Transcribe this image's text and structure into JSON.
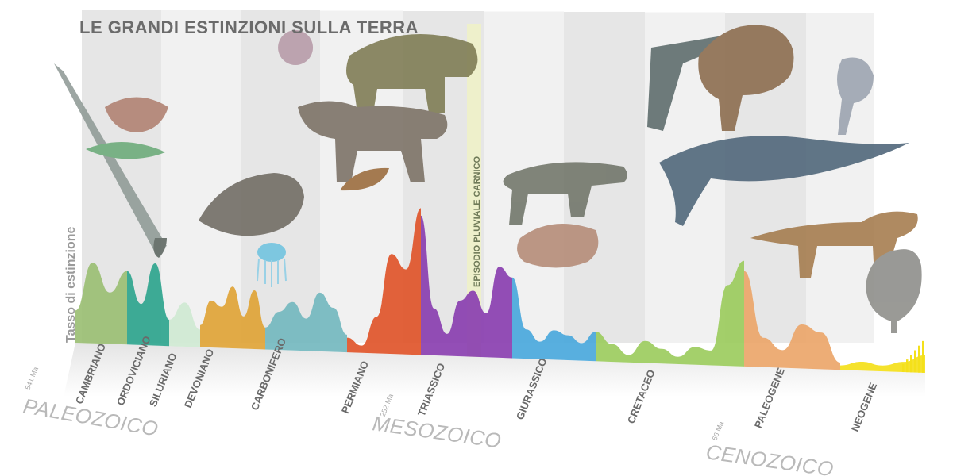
{
  "title": "LE GRANDI ESTINZIONI SULLA TERRA",
  "episode_label": "EPISODIO  PLUVIALE  CARNICO",
  "chart_data": {
    "type": "area",
    "title": "LE GRANDI ESTINZIONI SULLA TERRA",
    "xlabel": "",
    "ylabel": "Tasso di estinzione",
    "x_direction": "time flowing left to right, from 541 Ma to present",
    "eras": [
      {
        "name": "PALEOZOICO",
        "start_label": "541 Ma"
      },
      {
        "name": "MESOZOICO",
        "start_label": "252 Ma"
      },
      {
        "name": "CENOZOICO",
        "start_label": "66 Ma"
      }
    ],
    "periods": [
      {
        "name": "CAMBRIANO",
        "color": "#9bbf74",
        "profile": [
          0.22,
          0.55,
          0.35,
          0.5
        ]
      },
      {
        "name": "ORDOVICIANO",
        "color": "#2fa58e",
        "profile": [
          0.5,
          0.28,
          0.56,
          0.18
        ]
      },
      {
        "name": "SILURIANO",
        "color": "#cfe9d2",
        "profile": [
          0.18,
          0.3,
          0.12
        ]
      },
      {
        "name": "DEVONIANO",
        "color": "#e0a437",
        "profile": [
          0.15,
          0.32,
          0.28,
          0.42,
          0.22,
          0.4,
          0.15
        ]
      },
      {
        "name": "CARBONIFERO",
        "color": "#74b8bf",
        "profile": [
          0.15,
          0.26,
          0.33,
          0.22,
          0.4,
          0.3,
          0.12
        ]
      },
      {
        "name": "PERMIANO",
        "color": "#e0552a",
        "profile": [
          0.1,
          0.05,
          0.25,
          0.68,
          0.58,
          1.0
        ]
      },
      {
        "name": "TRIASSICO",
        "color": "#8a3fb0",
        "profile": [
          0.95,
          0.32,
          0.15,
          0.38,
          0.45,
          0.3,
          0.62,
          0.55
        ]
      },
      {
        "name": "GIURASSICO",
        "color": "#4aa8dc",
        "profile": [
          0.55,
          0.2,
          0.12,
          0.2,
          0.17,
          0.12,
          0.2
        ]
      },
      {
        "name": "CRETACEO",
        "color": "#9ccc5e",
        "profile": [
          0.2,
          0.12,
          0.05,
          0.15,
          0.1,
          0.05,
          0.12,
          0.1,
          0.55,
          0.72
        ]
      },
      {
        "name": "PALEOGENE",
        "color": "#eca66a",
        "profile": [
          0.65,
          0.2,
          0.12,
          0.3,
          0.25,
          0.05
        ]
      },
      {
        "name": "NEOGENE",
        "color": "#f4e01a",
        "profile": [
          0.03,
          0.06,
          0.04,
          0.07,
          0.12
        ]
      }
    ],
    "grid": false,
    "legend": "none"
  }
}
